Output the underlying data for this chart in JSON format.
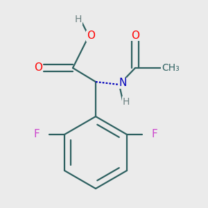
{
  "background_color": "#ebebeb",
  "atom_colors": {
    "O": "#ff0000",
    "N": "#0000bb",
    "F": "#cc44cc",
    "C": "#2d6060",
    "H": "#6a8080"
  },
  "bond_color": "#2d6060",
  "bond_width": 1.6,
  "figsize": [
    3.0,
    3.0
  ],
  "dpi": 100
}
